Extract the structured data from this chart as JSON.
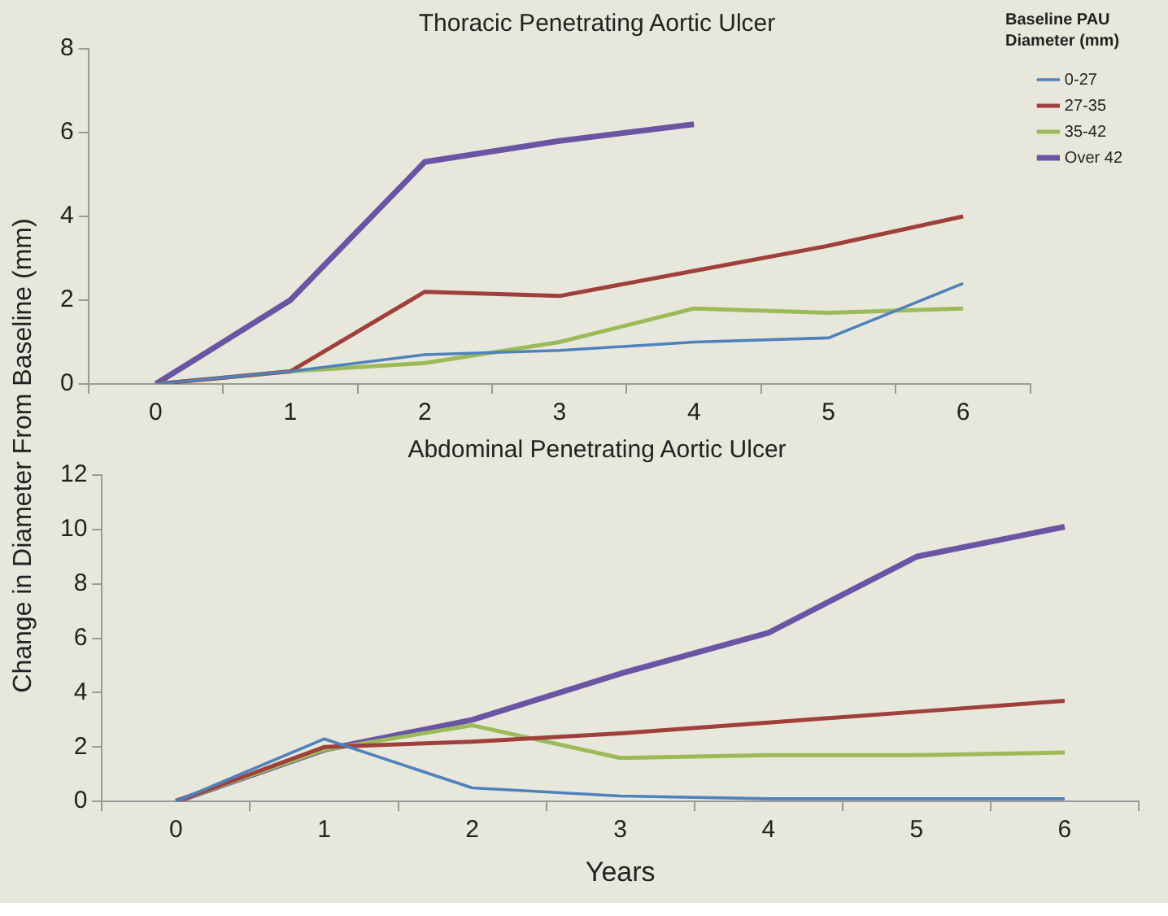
{
  "chart_data": [
    {
      "type": "line",
      "title": "Thoracic Penetrating Aortic Ulcer",
      "ylabel": "Change in Diameter From Baseline (mm)",
      "legend_title": "Baseline PAU Diameter (mm)",
      "legend": "top right",
      "grid": false,
      "marker": "none",
      "categories": [
        "0",
        "1",
        "2",
        "3",
        "4",
        "5",
        "6"
      ],
      "ylim": [
        0,
        8
      ],
      "yticks": [
        0,
        2,
        4,
        6,
        8
      ],
      "series": [
        {
          "name": "0-27",
          "color": "#4f81bd",
          "values": [
            0,
            0.3,
            0.7,
            0.8,
            1.0,
            1.1,
            2.4
          ]
        },
        {
          "name": "27-35",
          "color": "#a0403c",
          "values": [
            0,
            0.3,
            2.2,
            2.1,
            2.7,
            3.3,
            4.0
          ]
        },
        {
          "name": "35-42",
          "color": "#9bbb59",
          "values": [
            0,
            0.3,
            0.5,
            1.0,
            1.8,
            1.7,
            1.8
          ]
        },
        {
          "name": "Over 42",
          "color": "#6a54a3",
          "values": [
            0,
            2.0,
            5.3,
            5.8,
            6.2,
            null,
            null
          ]
        }
      ]
    },
    {
      "type": "line",
      "title": "Abdominal Penetrating Aortic Ulcer",
      "xlabel": "Years",
      "legend": false,
      "grid": false,
      "marker": "none",
      "categories": [
        "0",
        "1",
        "2",
        "3",
        "4",
        "5",
        "6"
      ],
      "ylim": [
        0,
        12
      ],
      "yticks": [
        0,
        2,
        4,
        6,
        8,
        10,
        12
      ],
      "series": [
        {
          "color": "#4f81bd",
          "values": [
            0,
            2.3,
            0.5,
            0.2,
            0.1,
            0.1,
            0.1
          ]
        },
        {
          "color": "#a0403c",
          "values": [
            0,
            2.0,
            2.2,
            2.5,
            2.9,
            3.3,
            3.7
          ]
        },
        {
          "color": "#9bbb59",
          "values": [
            0,
            1.9,
            2.8,
            1.6,
            1.7,
            1.7,
            1.8
          ]
        },
        {
          "color": "#6a54a3",
          "values": [
            0,
            1.9,
            3.0,
            4.7,
            6.2,
            9.0,
            10.1
          ]
        }
      ]
    }
  ]
}
